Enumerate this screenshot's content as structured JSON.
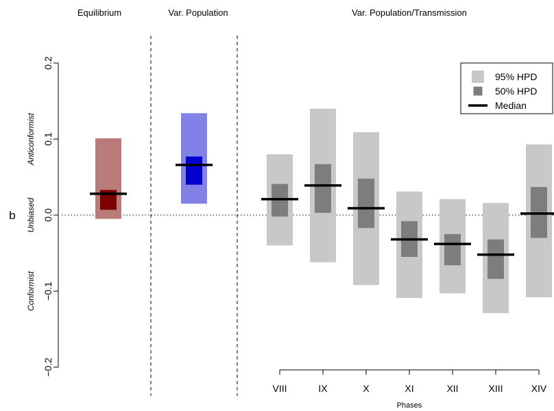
{
  "chart_data": {
    "type": "range-bar",
    "ylabel": "b",
    "xlabel": "Phases",
    "ylim": [
      -0.2,
      0.2
    ],
    "yticks": [
      {
        "value": -0.2,
        "label": "−0.2"
      },
      {
        "value": -0.1,
        "label": "−0.1"
      },
      {
        "value": 0.0,
        "label": "0.0"
      },
      {
        "value": 0.1,
        "label": "0.1"
      },
      {
        "value": 0.2,
        "label": "0.2"
      }
    ],
    "side_labels": [
      {
        "value": 0.1,
        "text": "Anticonformist"
      },
      {
        "value": 0.0,
        "text": "Unbiased"
      },
      {
        "value": -0.1,
        "text": "Conformist"
      }
    ],
    "reference_line": 0.0,
    "panels": [
      {
        "title": "Equilibrium",
        "items": [
          {
            "label": "",
            "hpd95": [
              -0.005,
              0.101
            ],
            "hpd50": [
              0.007,
              0.033
            ],
            "median": 0.028,
            "color95": "#b97b7b",
            "color50": "#7b0000"
          }
        ]
      },
      {
        "title": "Var. Population",
        "items": [
          {
            "label": "",
            "hpd95": [
              0.015,
              0.134
            ],
            "hpd50": [
              0.04,
              0.077
            ],
            "median": 0.066,
            "color95": "#8282e6",
            "color50": "#0000cc"
          }
        ]
      },
      {
        "title": "Var. Population/Transmission",
        "items": [
          {
            "label": "VIII",
            "hpd95": [
              -0.04,
              0.08
            ],
            "hpd50": [
              -0.002,
              0.041
            ],
            "median": 0.021,
            "color95": "#c8c8c8",
            "color50": "#7d7d7d"
          },
          {
            "label": "IX",
            "hpd95": [
              -0.062,
              0.14
            ],
            "hpd50": [
              0.003,
              0.067
            ],
            "median": 0.039,
            "color95": "#c8c8c8",
            "color50": "#7d7d7d"
          },
          {
            "label": "X",
            "hpd95": [
              -0.092,
              0.109
            ],
            "hpd50": [
              -0.017,
              0.048
            ],
            "median": 0.009,
            "color95": "#c8c8c8",
            "color50": "#7d7d7d"
          },
          {
            "label": "XI",
            "hpd95": [
              -0.109,
              0.031
            ],
            "hpd50": [
              -0.055,
              -0.008
            ],
            "median": -0.032,
            "color95": "#c8c8c8",
            "color50": "#7d7d7d"
          },
          {
            "label": "XII",
            "hpd95": [
              -0.103,
              0.021
            ],
            "hpd50": [
              -0.066,
              -0.025
            ],
            "median": -0.038,
            "color95": "#c8c8c8",
            "color50": "#7d7d7d"
          },
          {
            "label": "XIII",
            "hpd95": [
              -0.129,
              0.016
            ],
            "hpd50": [
              -0.084,
              -0.032
            ],
            "median": -0.052,
            "color95": "#c8c8c8",
            "color50": "#7d7d7d"
          },
          {
            "label": "XIV",
            "hpd95": [
              -0.108,
              0.093
            ],
            "hpd50": [
              -0.03,
              0.037
            ],
            "median": 0.002,
            "color95": "#c8c8c8",
            "color50": "#7d7d7d"
          }
        ]
      }
    ],
    "legend": {
      "position": "top-right",
      "entries": [
        {
          "label": "95% HPD",
          "kind": "box",
          "color": "#c8c8c8"
        },
        {
          "label": "50% HPD",
          "kind": "box",
          "color": "#7d7d7d"
        },
        {
          "label": "Median",
          "kind": "line",
          "color": "#000000"
        }
      ]
    }
  }
}
